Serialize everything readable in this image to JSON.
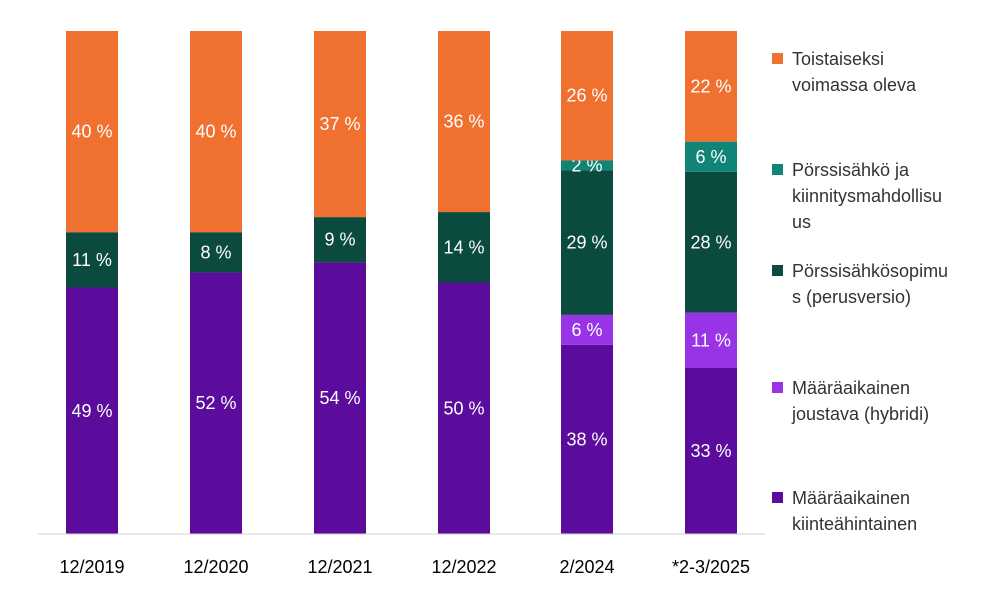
{
  "chart_data": {
    "type": "bar",
    "stacked": true,
    "percent_stacked": true,
    "categories": [
      "12/2019",
      "12/2020",
      "12/2021",
      "12/2022",
      "2/2024",
      "*2-3/2025"
    ],
    "series": [
      {
        "name": "Määräaikainen kiinteähintainen",
        "label_lines": [
          "Määräaikainen",
          "kiinteähintainen"
        ],
        "color": "#5b0c9c",
        "values": [
          49,
          52,
          54,
          50,
          38,
          33
        ]
      },
      {
        "name": "Määräaikainen joustava (hybridi)",
        "label_lines": [
          "Määräaikainen",
          "joustava (hybridi)"
        ],
        "color": "#9933e6",
        "values": [
          null,
          null,
          null,
          null,
          6,
          11
        ]
      },
      {
        "name": "Pörssisähkösopimus (perusversio)",
        "label_lines": [
          "Pörssisähkösopimu",
          "s (perusversio)"
        ],
        "color": "#0b4a3e",
        "values": [
          11,
          8,
          9,
          14,
          29,
          28
        ]
      },
      {
        "name": "Pörssisähkö ja kiinnitysmahdollisuus",
        "label_lines": [
          "Pörssisähkö ja",
          "kiinnitysmahdollisu",
          "us"
        ],
        "color": "#0f8477",
        "values": [
          null,
          null,
          null,
          null,
          2,
          6
        ]
      },
      {
        "name": "Toistaiseksi voimassa oleva",
        "label_lines": [
          "Toistaiseksi",
          "voimassa oleva"
        ],
        "color": "#f07030",
        "values": [
          40,
          40,
          37,
          36,
          26,
          22
        ]
      }
    ],
    "value_suffix": " %",
    "legend_position": "right",
    "legend_order": [
      4,
      3,
      2,
      1,
      0
    ],
    "grid": false
  }
}
